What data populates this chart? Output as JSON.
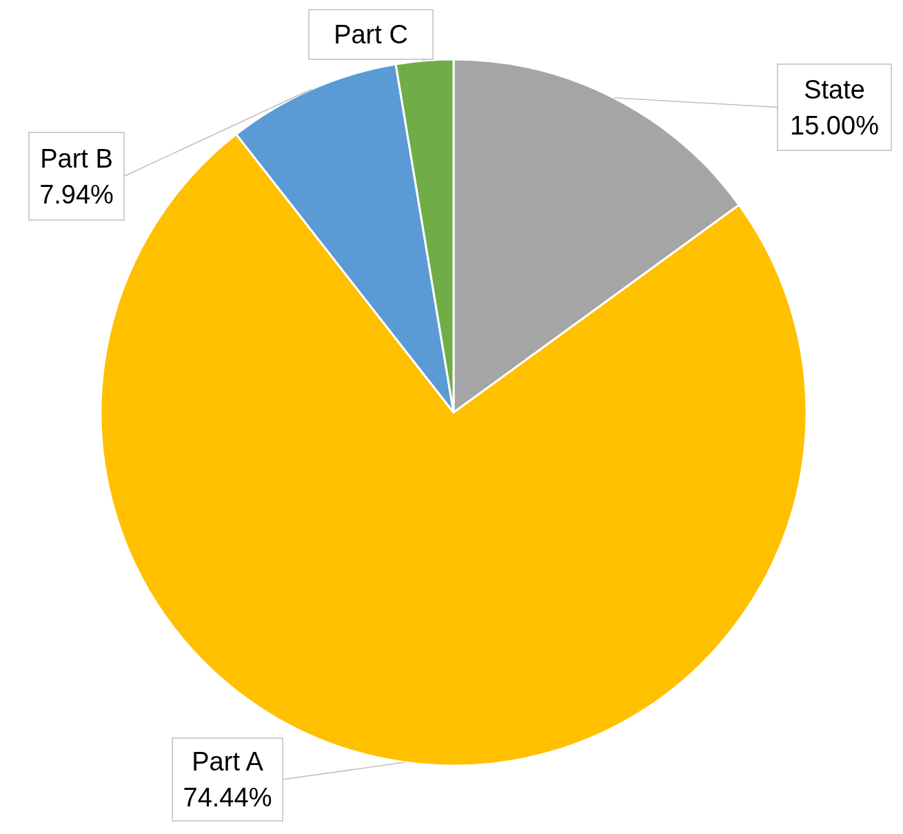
{
  "chart_data": {
    "type": "pie",
    "categories": [
      "State",
      "Part A",
      "Part B",
      "Part C"
    ],
    "values": [
      15.0,
      74.44,
      7.94,
      2.62
    ],
    "colors": [
      "#a5a5a5",
      "#ffc000",
      "#5b9bd5",
      "#70ad47"
    ],
    "value_labels": [
      "15.00%",
      "74.44%",
      "7.94%",
      null
    ]
  }
}
